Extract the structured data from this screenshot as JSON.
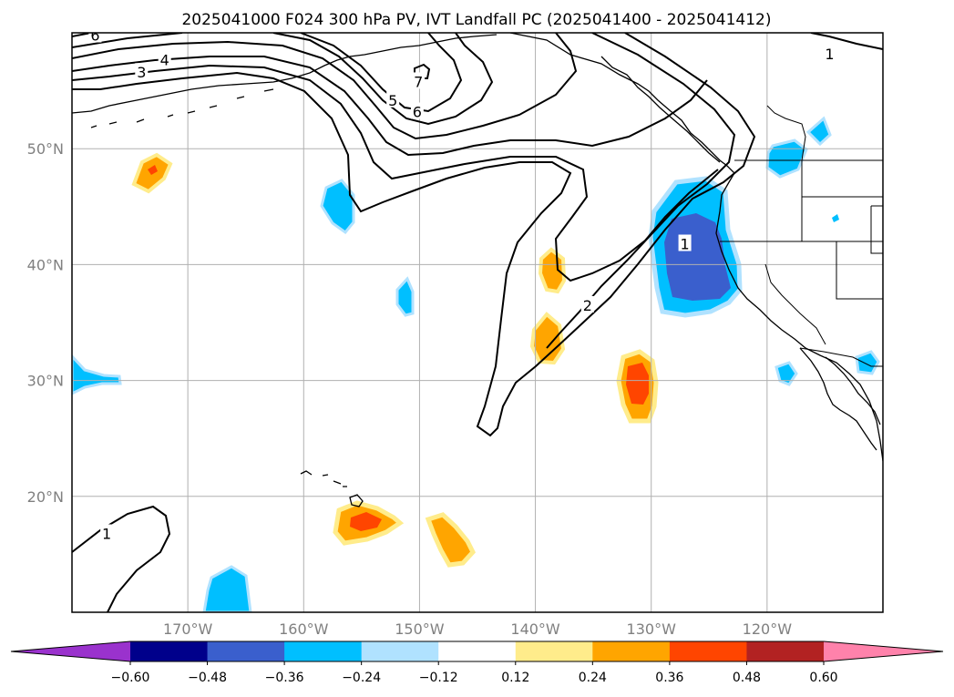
{
  "chart_data": {
    "type": "contour_map",
    "title": "2025041000 F024 300 hPa PV, IVT Landfall PC (2025041400 - 2025041412)",
    "map_extent": {
      "lon": [
        -180,
        -110
      ],
      "lat": [
        10,
        60
      ]
    },
    "lon_ticks": [
      {
        "value": -170,
        "label": "170°W"
      },
      {
        "value": -160,
        "label": "160°W"
      },
      {
        "value": -150,
        "label": "150°W"
      },
      {
        "value": -140,
        "label": "140°W"
      },
      {
        "value": -130,
        "label": "130°W"
      },
      {
        "value": -120,
        "label": "120°W"
      }
    ],
    "lat_ticks": [
      {
        "value": 50,
        "label": "50°N"
      },
      {
        "value": 40,
        "label": "40°N"
      },
      {
        "value": 30,
        "label": "30°N"
      },
      {
        "value": 20,
        "label": "20°N"
      }
    ],
    "grid": true,
    "pv_contours": {
      "levels": [
        1,
        2,
        3,
        4,
        5,
        6,
        7
      ],
      "labels": [
        {
          "text": "6",
          "lon": -178.0,
          "lat": 59.8
        },
        {
          "text": "4",
          "lon": -172.0,
          "lat": 57.7
        },
        {
          "text": "3",
          "lon": -174.0,
          "lat": 56.6
        },
        {
          "text": "7",
          "lon": -150.1,
          "lat": 55.8
        },
        {
          "text": "5",
          "lon": -152.3,
          "lat": 54.2
        },
        {
          "text": "6",
          "lon": -150.2,
          "lat": 53.2
        },
        {
          "text": "1",
          "lon": -114.6,
          "lat": 58.2
        },
        {
          "text": "1",
          "lon": -127.1,
          "lat": 41.8
        },
        {
          "text": "2",
          "lon": -135.5,
          "lat": 36.5
        },
        {
          "text": "1",
          "lon": -177.0,
          "lat": 16.8
        }
      ]
    },
    "colorbar": {
      "ticks": [
        -0.6,
        -0.48,
        -0.36,
        -0.24,
        -0.12,
        0.12,
        0.24,
        0.36,
        0.48,
        0.6
      ],
      "tick_labels": [
        "−0.60",
        "−0.48",
        "−0.36",
        "−0.24",
        "−0.12",
        "0.12",
        "0.24",
        "0.36",
        "0.48",
        "0.60"
      ],
      "colors": [
        "#9a32cd",
        "#00008b",
        "#3a5fcd",
        "#00bfff",
        "#b0e2ff",
        "#ffffff",
        "#ffec8b",
        "#ffa500",
        "#ff4500",
        "#b22222",
        "#ff82ab"
      ],
      "extend": "both"
    },
    "ivt_features": [
      {
        "sign": "negative",
        "peak": -0.48,
        "lon": -126.5,
        "lat": 40.5
      },
      {
        "sign": "negative",
        "peak": -0.36,
        "lon": -118.7,
        "lat": 49.1
      },
      {
        "sign": "negative",
        "peak": -0.36,
        "lon": -115.7,
        "lat": 51.4
      },
      {
        "sign": "negative",
        "peak": -0.36,
        "lon": -156.9,
        "lat": 45.0
      },
      {
        "sign": "negative",
        "peak": -0.36,
        "lon": -151.2,
        "lat": 37.3
      },
      {
        "sign": "negative",
        "peak": -0.36,
        "lon": -177.5,
        "lat": 30.2
      },
      {
        "sign": "negative",
        "peak": -0.36,
        "lon": -165.7,
        "lat": 11.6
      },
      {
        "sign": "negative",
        "peak": -0.36,
        "lon": -120.2,
        "lat": 30.5
      },
      {
        "sign": "negative",
        "peak": -0.36,
        "lon": -112.6,
        "lat": 31.5
      },
      {
        "sign": "positive",
        "peak": 0.36,
        "lon": -173.0,
        "lat": 47.9
      },
      {
        "sign": "positive",
        "peak": 0.24,
        "lon": -140.9,
        "lat": 39.6
      },
      {
        "sign": "positive",
        "peak": 0.24,
        "lon": -141.3,
        "lat": 33.6
      },
      {
        "sign": "positive",
        "peak": 0.36,
        "lon": -132.4,
        "lat": 30.5
      },
      {
        "sign": "positive",
        "peak": 0.36,
        "lon": -155.1,
        "lat": 17.5
      },
      {
        "sign": "positive",
        "peak": 0.24,
        "lon": -147.4,
        "lat": 15.8
      }
    ]
  }
}
